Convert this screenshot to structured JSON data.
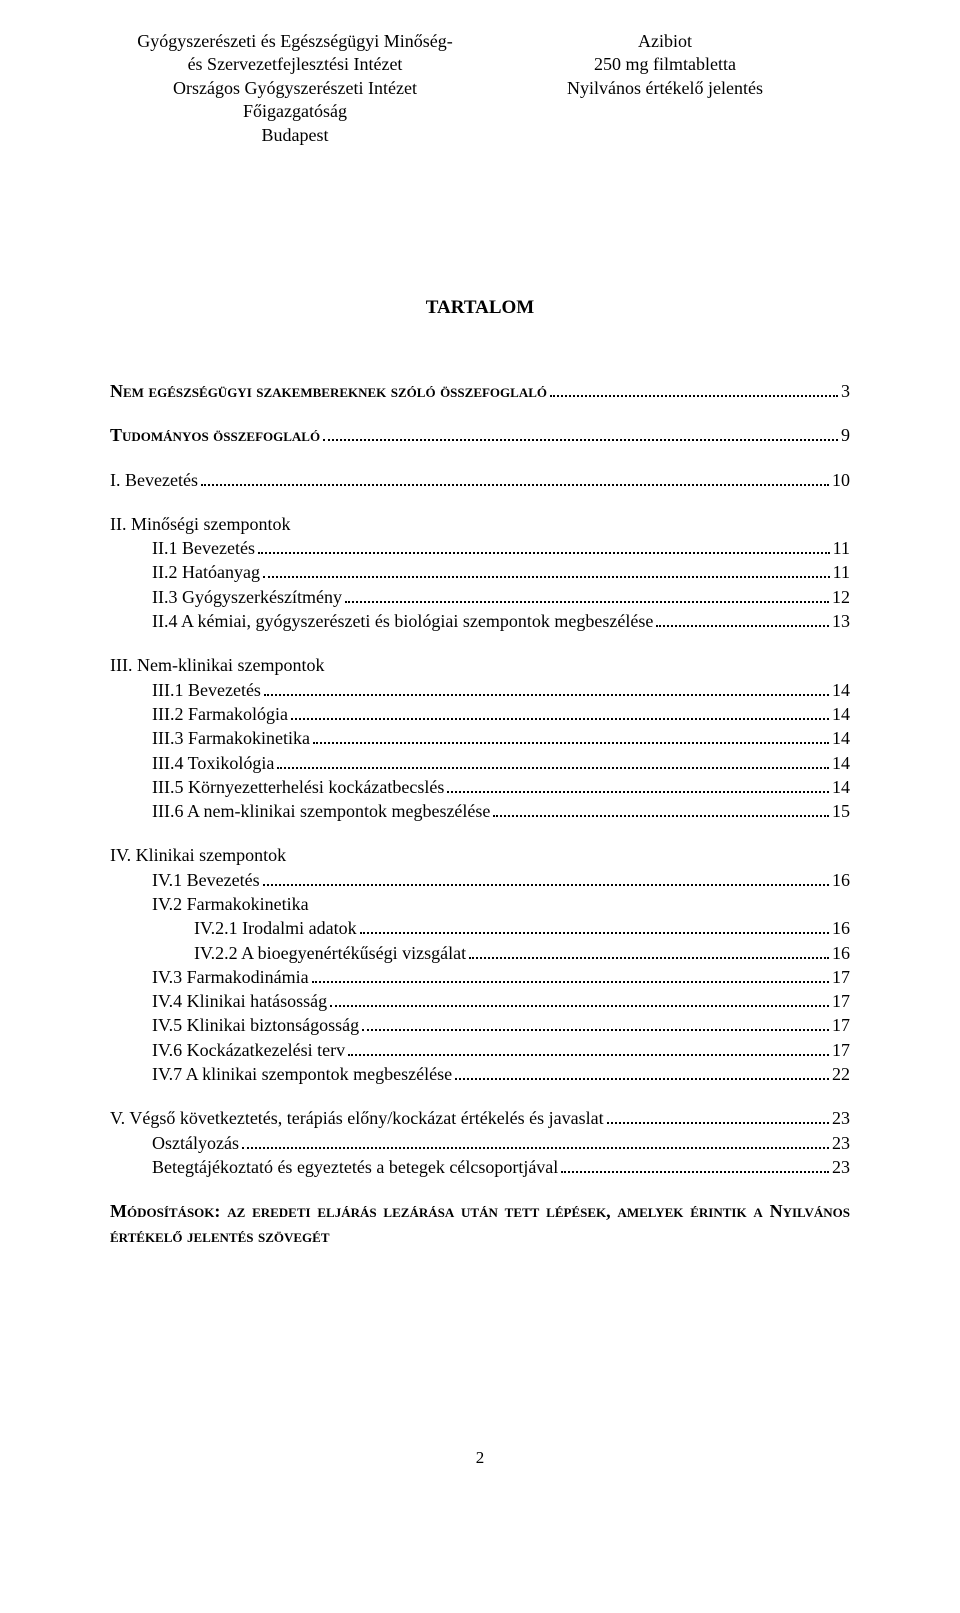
{
  "header": {
    "left": [
      "Gyógyszerészeti és Egészségügyi Minőség-",
      "és Szervezetfejlesztési Intézet",
      "Országos Gyógyszerészeti Intézet",
      "Főigazgatóság",
      "Budapest"
    ],
    "right": [
      "Azibiot",
      "250 mg filmtabletta",
      "Nyilvános értékelő jelentés"
    ]
  },
  "title": "TARTALOM",
  "toc": [
    {
      "label": "Nem egészségügyi szakembereknek szóló összefoglaló",
      "page": "3",
      "indent": 0,
      "bold": true,
      "sc": true
    },
    {
      "label": "Tudományos összefoglaló",
      "page": "9",
      "indent": 0,
      "bold": true,
      "sc": true,
      "gap": true
    },
    {
      "label": "I. Bevezetés",
      "page": "10",
      "indent": 0,
      "gap": true
    },
    {
      "label": "II. Minőségi szempontok",
      "page": "",
      "indent": 0,
      "gap": true,
      "nodots": true
    },
    {
      "label": "II.1 Bevezetés",
      "page": "11",
      "indent": 1
    },
    {
      "label": "II.2 Hatóanyag",
      "page": "11",
      "indent": 1
    },
    {
      "label": "II.3 Gyógyszerkészítmény",
      "page": "12",
      "indent": 1
    },
    {
      "label": "II.4 A kémiai, gyógyszerészeti és biológiai szempontok megbeszélése",
      "page": "13",
      "indent": 1
    },
    {
      "label": "III. Nem-klinikai szempontok",
      "page": "",
      "indent": 0,
      "gap": true,
      "nodots": true
    },
    {
      "label": "III.1 Bevezetés",
      "page": "14",
      "indent": 1
    },
    {
      "label": "III.2 Farmakológia",
      "page": "14",
      "indent": 1
    },
    {
      "label": "III.3 Farmakokinetika",
      "page": "14",
      "indent": 1
    },
    {
      "label": "III.4 Toxikológia",
      "page": "14",
      "indent": 1
    },
    {
      "label": "III.5 Környezetterhelési kockázatbecslés",
      "page": "14",
      "indent": 1
    },
    {
      "label": "III.6 A nem-klinikai szempontok megbeszélése",
      "page": "15",
      "indent": 1
    },
    {
      "label": "IV. Klinikai szempontok",
      "page": "",
      "indent": 0,
      "gap": true,
      "nodots": true
    },
    {
      "label": "IV.1 Bevezetés",
      "page": "16",
      "indent": 1
    },
    {
      "label": "IV.2 Farmakokinetika",
      "page": "",
      "indent": 1,
      "nodots": true
    },
    {
      "label": "IV.2.1 Irodalmi adatok",
      "page": "16",
      "indent": 2
    },
    {
      "label": "IV.2.2 A bioegyenértékűségi vizsgálat",
      "page": "16",
      "indent": 2
    },
    {
      "label": "IV.3 Farmakodinámia",
      "page": "17",
      "indent": 1
    },
    {
      "label": "IV.4 Klinikai hatásosság",
      "page": "17",
      "indent": 1
    },
    {
      "label": "IV.5 Klinikai biztonságosság",
      "page": "17",
      "indent": 1
    },
    {
      "label": "IV.6 Kockázatkezelési terv",
      "page": "17",
      "indent": 1
    },
    {
      "label": "IV.7 A klinikai szempontok megbeszélése",
      "page": "22",
      "indent": 1
    },
    {
      "label": "V. Végső következtetés, terápiás előny/kockázat értékelés és javaslat",
      "page": "23",
      "indent": 0,
      "gap": true
    },
    {
      "label": "Osztályozás",
      "page": "23",
      "indent": 1
    },
    {
      "label": "Betegtájékoztató és egyeztetés a betegek célcsoportjával",
      "page": "23",
      "indent": 1
    }
  ],
  "footer_para": "Módosítások: az eredeti eljárás lezárása után tett lépések, amelyek érintik a Nyilvános értékelő jelentés szövegét",
  "page_number": "2"
}
